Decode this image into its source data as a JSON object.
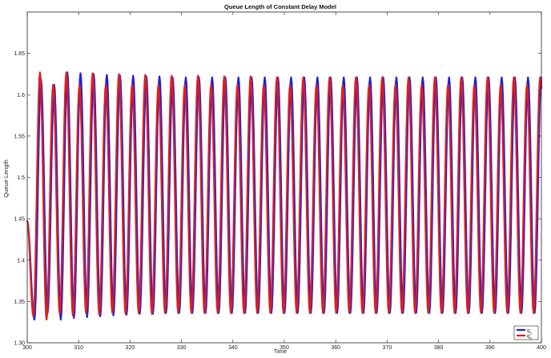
{
  "chart_data": {
    "type": "line",
    "title": "Queue Length of Constant Delay Model",
    "xlabel": "Time",
    "ylabel": "Queue Length",
    "xlim": [
      300,
      400
    ],
    "ylim": [
      1.3,
      1.7
    ],
    "xticks": [
      300,
      310,
      320,
      330,
      340,
      350,
      360,
      370,
      380,
      390,
      400
    ],
    "yticks": [
      1.3,
      1.35,
      1.4,
      1.45,
      1.5,
      1.55,
      1.6,
      1.65
    ],
    "xtick_labels": [
      "300",
      "310",
      "320",
      "330",
      "340",
      "350",
      "360",
      "370",
      "380",
      "390",
      "400"
    ],
    "ytick_labels": [
      "1.30",
      "1.35",
      "1.4",
      "1.45",
      "1.5",
      "1.55",
      "1.6",
      "1.65"
    ],
    "grid": false,
    "legend_position": "bottom-right",
    "series": [
      {
        "name": "q1",
        "legend_main": "q",
        "legend_sub": "1",
        "color": "#1f1fd6",
        "start": [
          300.0,
          1.447
        ],
        "period": 2.56,
        "phase": 301.4,
        "peaks": [
          1.618,
          1.612,
          1.627,
          1.626,
          1.625,
          1.624,
          1.623,
          1.623,
          1.622,
          1.622,
          1.621,
          1.621,
          1.621,
          1.621,
          1.621,
          1.621,
          1.621,
          1.621,
          1.621,
          1.621,
          1.621,
          1.621,
          1.621,
          1.621,
          1.621,
          1.621,
          1.621,
          1.621,
          1.621,
          1.621,
          1.621,
          1.621,
          1.621,
          1.621,
          1.621,
          1.621,
          1.621,
          1.621,
          1.621
        ],
        "troughs": [
          1.328,
          1.336,
          1.328,
          1.33,
          1.331,
          1.332,
          1.333,
          1.334,
          1.335,
          1.335,
          1.336,
          1.336,
          1.336,
          1.336,
          1.336,
          1.336,
          1.336,
          1.336,
          1.336,
          1.336,
          1.336,
          1.336,
          1.336,
          1.336,
          1.336,
          1.336,
          1.336,
          1.336,
          1.336,
          1.336,
          1.336,
          1.336,
          1.336,
          1.336,
          1.336,
          1.336,
          1.336,
          1.336,
          1.336
        ],
        "end": [
          400.0,
          1.608
        ]
      },
      {
        "name": "q2",
        "legend_main": "q",
        "legend_sub": "2",
        "color": "#dd1f1f",
        "start": [
          300.0,
          1.447
        ],
        "period": 2.56,
        "phase": 301.2,
        "peaks": [
          1.627,
          1.612,
          1.627,
          1.612,
          1.626,
          1.612,
          1.625,
          1.612,
          1.624,
          1.612,
          1.623,
          1.612,
          1.623,
          1.612,
          1.622,
          1.612,
          1.622,
          1.612,
          1.621,
          1.612,
          1.621,
          1.612,
          1.621,
          1.612,
          1.621,
          1.612,
          1.621,
          1.612,
          1.621,
          1.612,
          1.621,
          1.612,
          1.621,
          1.612,
          1.621,
          1.612,
          1.621,
          1.612,
          1.621
        ],
        "troughs": [
          1.332,
          1.328,
          1.335,
          1.333,
          1.336,
          1.334,
          1.336,
          1.335,
          1.336,
          1.335,
          1.336,
          1.336,
          1.336,
          1.336,
          1.336,
          1.336,
          1.336,
          1.336,
          1.336,
          1.336,
          1.336,
          1.336,
          1.336,
          1.336,
          1.336,
          1.336,
          1.336,
          1.336,
          1.336,
          1.336,
          1.336,
          1.336,
          1.336,
          1.336,
          1.336,
          1.336,
          1.336,
          1.336,
          1.336
        ],
        "end": [
          400.0,
          1.61
        ]
      }
    ]
  }
}
